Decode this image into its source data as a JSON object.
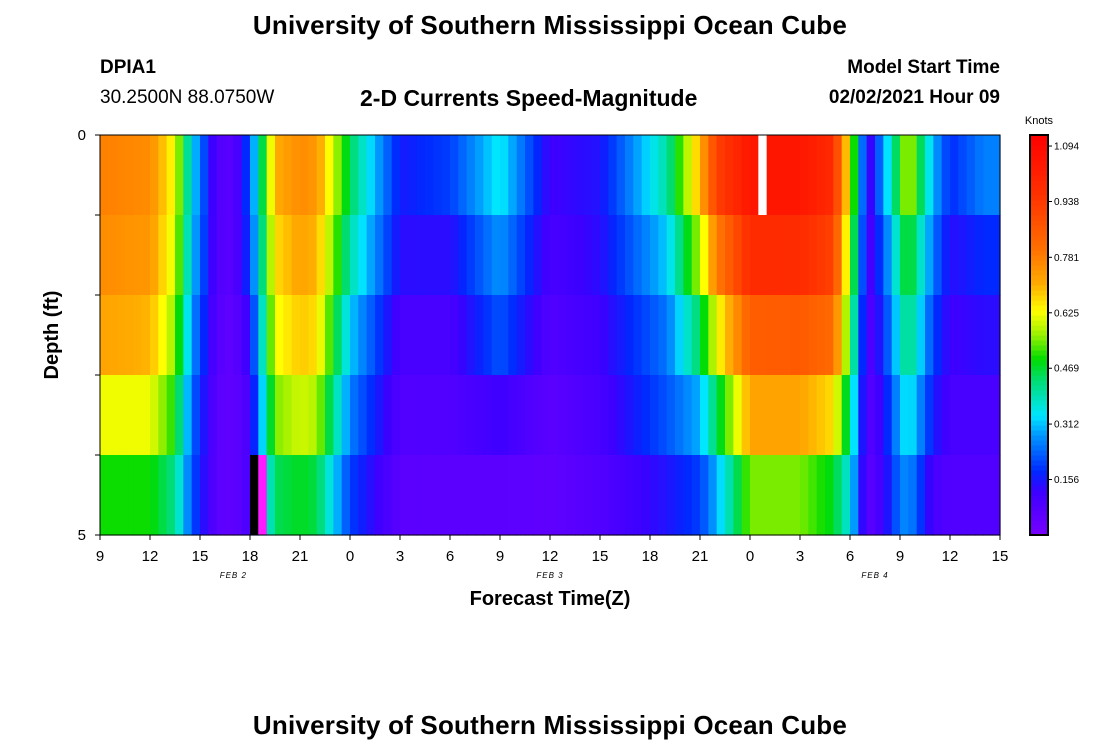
{
  "page": {
    "title_top": "University of Southern Mississippi Ocean Cube",
    "title_bottom": "University of Southern Mississippi Ocean Cube",
    "station_id": "DPIA1",
    "station_coords": "30.2500N 88.0750W",
    "plot_title": "2-D Currents Speed-Magnitude",
    "model_label": "Model Start Time",
    "model_time": "02/02/2021 Hour 09"
  },
  "chart_data": {
    "type": "heatmap",
    "title": "2-D Currents Speed-Magnitude",
    "xlabel": "Forecast Time(Z)",
    "ylabel": "Depth (ft)",
    "x_tick_labels": [
      "9",
      "12",
      "15",
      "18",
      "21",
      "0",
      "3",
      "6",
      "9",
      "12",
      "15",
      "18",
      "21",
      "0",
      "3",
      "6",
      "9",
      "12",
      "15"
    ],
    "x_range_hours": [
      0,
      54
    ],
    "date_labels": [
      {
        "text": "FEB 2",
        "hour": 8
      },
      {
        "text": "FEB 3",
        "hour": 27
      },
      {
        "text": "FEB 4",
        "hour": 46.5
      }
    ],
    "y_tick_labels": [
      "0",
      "5"
    ],
    "ylim": [
      0,
      5
    ],
    "depth_bins": 5,
    "colorbar": {
      "label": "Knots",
      "min": 0,
      "max": 1.125,
      "ticks": [
        "1.094",
        "0.938",
        "0.781",
        "0.625",
        "0.469",
        "0.312",
        "0.156"
      ],
      "tick_values": [
        1.094,
        0.938,
        0.781,
        0.625,
        0.469,
        0.312,
        0.156
      ]
    },
    "profile_keyframes_hours": [
      0,
      3,
      4.5,
      5.5,
      7,
      8,
      9,
      10.5,
      12,
      13,
      15,
      18,
      21,
      24,
      27,
      30,
      34,
      36,
      37,
      39,
      42,
      44,
      45,
      45.5,
      46,
      47,
      48,
      48.5,
      50,
      51,
      53,
      54
    ],
    "profile_keyframes_knots": [
      [
        0.78,
        0.76,
        0.72,
        0.62,
        0.5
      ],
      [
        0.76,
        0.74,
        0.7,
        0.62,
        0.5
      ],
      [
        0.62,
        0.6,
        0.56,
        0.5,
        0.42
      ],
      [
        0.34,
        0.32,
        0.28,
        0.24,
        0.22
      ],
      [
        0.08,
        0.08,
        0.07,
        0.06,
        0.06
      ],
      [
        0.06,
        0.06,
        0.05,
        0.05,
        0.05
      ],
      [
        0.22,
        0.2,
        0.14,
        0.1,
        0.1
      ],
      [
        0.7,
        0.66,
        0.62,
        0.55,
        0.45
      ],
      [
        0.76,
        0.72,
        0.68,
        0.6,
        0.48
      ],
      [
        0.74,
        0.7,
        0.66,
        0.58,
        0.46
      ],
      [
        0.45,
        0.4,
        0.32,
        0.26,
        0.2
      ],
      [
        0.16,
        0.14,
        0.1,
        0.08,
        0.06
      ],
      [
        0.2,
        0.14,
        0.1,
        0.08,
        0.06
      ],
      [
        0.35,
        0.28,
        0.22,
        0.12,
        0.06
      ],
      [
        0.12,
        0.1,
        0.08,
        0.06,
        0.05
      ],
      [
        0.15,
        0.14,
        0.12,
        0.1,
        0.08
      ],
      [
        0.4,
        0.32,
        0.25,
        0.22,
        0.15
      ],
      [
        0.7,
        0.58,
        0.45,
        0.3,
        0.2
      ],
      [
        0.92,
        0.78,
        0.62,
        0.45,
        0.3
      ],
      [
        1.05,
        0.98,
        0.85,
        0.72,
        0.55
      ],
      [
        1.05,
        0.98,
        0.86,
        0.72,
        0.55
      ],
      [
        0.98,
        0.92,
        0.82,
        0.66,
        0.48
      ],
      [
        0.6,
        0.55,
        0.5,
        0.42,
        0.35
      ],
      [
        0.4,
        0.36,
        0.3,
        0.25,
        0.22
      ],
      [
        0.08,
        0.07,
        0.06,
        0.06,
        0.05
      ],
      [
        0.28,
        0.22,
        0.18,
        0.14,
        0.12
      ],
      [
        0.5,
        0.42,
        0.36,
        0.3,
        0.25
      ],
      [
        0.6,
        0.5,
        0.44,
        0.36,
        0.28
      ],
      [
        0.3,
        0.25,
        0.2,
        0.16,
        0.1
      ],
      [
        0.18,
        0.14,
        0.12,
        0.1,
        0.08
      ],
      [
        0.26,
        0.18,
        0.14,
        0.1,
        0.08
      ],
      [
        0.26,
        0.18,
        0.14,
        0.1,
        0.08
      ]
    ],
    "markers": [
      {
        "color": "#ffffff",
        "hour": 39.5,
        "depth_bin": 0
      },
      {
        "color": "#000000",
        "hour": 9,
        "depth_bin": 4
      },
      {
        "color": "#ff1aff",
        "hour": 9.5,
        "depth_bin": 4
      }
    ]
  }
}
